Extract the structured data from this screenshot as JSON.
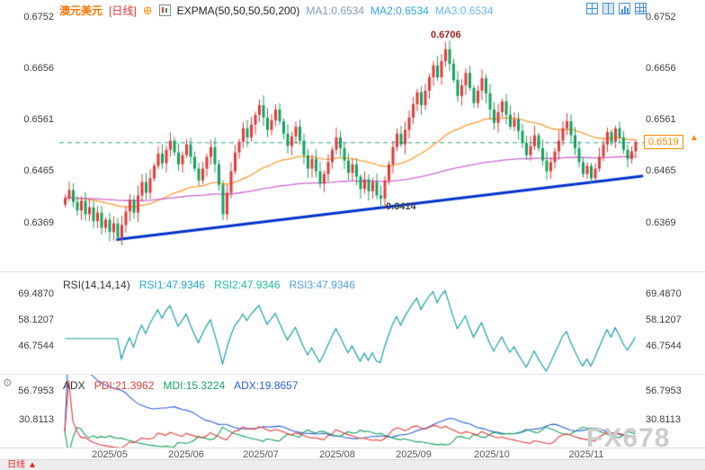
{
  "colors": {
    "up": "#e23b3b",
    "down": "#17a05e",
    "ema_fast": "#ff9933",
    "ema_slow": "#cc66cc",
    "trendline": "#0033cc",
    "price_line": "#2aa198",
    "price_tag": "#ff8800",
    "rsi_line": "#18a0a8",
    "pdi": "#e23b3b",
    "mdi": "#17a05e",
    "adx": "#2b5fd9"
  },
  "header": {
    "symbol": "澳元美元",
    "period": "[日线]",
    "add_icon": "⊕",
    "indicator": "EXPMA(50,50,50,50,200)",
    "ma1": "MA1:0.6534",
    "ma2": "MA2:0.6534",
    "ma3": "MA3:0.6534"
  },
  "toolbar": {
    "icons": [
      "quad-grid-icon",
      "split-view-icon",
      "chart-view-icon",
      "multi-grid-icon"
    ]
  },
  "main": {
    "y_ticks": [
      "0.6752",
      "0.6656",
      "0.6561",
      "0.6465",
      "0.6369"
    ],
    "swing_high_label": "0.6706",
    "swing_low_label": "0.6414",
    "last_price_label": "0.6519",
    "price_arrow_glyph": "▲"
  },
  "rsi": {
    "title": "RSI(14,14,14)",
    "rsi1": "RSI1:47.9346",
    "rsi2": "RSI2:47.9346",
    "rsi3": "RSI3:47.9346",
    "y_ticks": [
      "69.4870",
      "58.1207",
      "46.7544"
    ]
  },
  "adx": {
    "gear_glyph": "⚙",
    "title": "ADX",
    "pdi": "PDI:21.3962",
    "mdi": "MDI:15.3224",
    "adx": "ADX:19.8657",
    "y_ticks": [
      "56.7953",
      "30.8113"
    ]
  },
  "xaxis": {
    "months": [
      "2025/05",
      "2025/06",
      "2025/07",
      "2025/08",
      "2025/09",
      "2025/10",
      "2025/11"
    ]
  },
  "footer": {
    "period_tab": "日线",
    "tab_arrow": "▲"
  },
  "watermark": "FX678",
  "chart_data": [
    {
      "type": "candlestick",
      "title": "澳元美元 [日线]",
      "timeframe": "daily",
      "categories_months": [
        "2025/05",
        "2025/06",
        "2025/07",
        "2025/08",
        "2025/09",
        "2025/10",
        "2025/11"
      ],
      "y_ticks": [
        0.6752,
        0.6656,
        0.6561,
        0.6465,
        0.6369
      ],
      "ylim": [
        0.632,
        0.6784
      ],
      "closes": [
        0.6415,
        0.643,
        0.6408,
        0.6392,
        0.641,
        0.6385,
        0.6398,
        0.6372,
        0.6388,
        0.636,
        0.6375,
        0.6352,
        0.6368,
        0.6342,
        0.6365,
        0.639,
        0.6412,
        0.6388,
        0.642,
        0.6445,
        0.6425,
        0.6452,
        0.6475,
        0.6498,
        0.648,
        0.6505,
        0.6522,
        0.65,
        0.6478,
        0.6495,
        0.6515,
        0.6492,
        0.647,
        0.6448,
        0.647,
        0.6492,
        0.651,
        0.6478,
        0.644,
        0.6385,
        0.6425,
        0.6465,
        0.65,
        0.652,
        0.6545,
        0.6528,
        0.6552,
        0.657,
        0.6588,
        0.6565,
        0.6542,
        0.656,
        0.658,
        0.6558,
        0.6535,
        0.6512,
        0.653,
        0.6548,
        0.6522,
        0.6495,
        0.647,
        0.6488,
        0.6465,
        0.6442,
        0.646,
        0.6482,
        0.6505,
        0.6528,
        0.6508,
        0.6485,
        0.6462,
        0.6478,
        0.6455,
        0.6432,
        0.645,
        0.6428,
        0.6445,
        0.642,
        0.6414,
        0.6448,
        0.6478,
        0.651,
        0.6535,
        0.6515,
        0.6542,
        0.6565,
        0.659,
        0.6612,
        0.6588,
        0.6615,
        0.664,
        0.6662,
        0.664,
        0.667,
        0.6692,
        0.6665,
        0.6635,
        0.6605,
        0.6625,
        0.6648,
        0.662,
        0.6592,
        0.6615,
        0.6638,
        0.661,
        0.658,
        0.6555,
        0.6575,
        0.6595,
        0.657,
        0.6548,
        0.6562,
        0.654,
        0.6518,
        0.6495,
        0.6512,
        0.6532,
        0.6508,
        0.6485,
        0.6465,
        0.6482,
        0.6502,
        0.6522,
        0.6545,
        0.6558,
        0.6532,
        0.6508,
        0.6482,
        0.646,
        0.6475,
        0.6452,
        0.647,
        0.6492,
        0.6515,
        0.6538,
        0.652,
        0.6545,
        0.6528,
        0.6505,
        0.6488,
        0.6502,
        0.6519
      ],
      "indicators": {
        "label": "EXPMA(50,50,50,50,200)",
        "ma1": 0.6534,
        "ma2": 0.6534,
        "ma3": 0.6534,
        "ema_periods": [
          50,
          200
        ]
      },
      "annotations": {
        "swing_high": 0.6706,
        "swing_high_index": 94,
        "swing_low": 0.6414,
        "swing_low_index": 78,
        "last_price": 0.6519
      },
      "trendline": {
        "from_index": 13,
        "from_price": 0.6338,
        "to_price": 0.6456
      },
      "grid": false,
      "legend_position": "top-left"
    },
    {
      "type": "line",
      "title": "RSI(14,14,14)",
      "period": 14,
      "series": [
        {
          "name": "RSI1",
          "last": 47.9346
        },
        {
          "name": "RSI2",
          "last": 47.9346
        },
        {
          "name": "RSI3",
          "last": 47.9346
        }
      ],
      "y_ticks": [
        69.487,
        58.1207,
        46.7544
      ]
    },
    {
      "type": "line",
      "title": "ADX",
      "series": [
        {
          "name": "PDI",
          "last": 21.3962
        },
        {
          "name": "MDI",
          "last": 15.3224
        },
        {
          "name": "ADX",
          "last": 19.8657
        }
      ],
      "y_ticks": [
        56.7953,
        30.8113
      ]
    }
  ]
}
